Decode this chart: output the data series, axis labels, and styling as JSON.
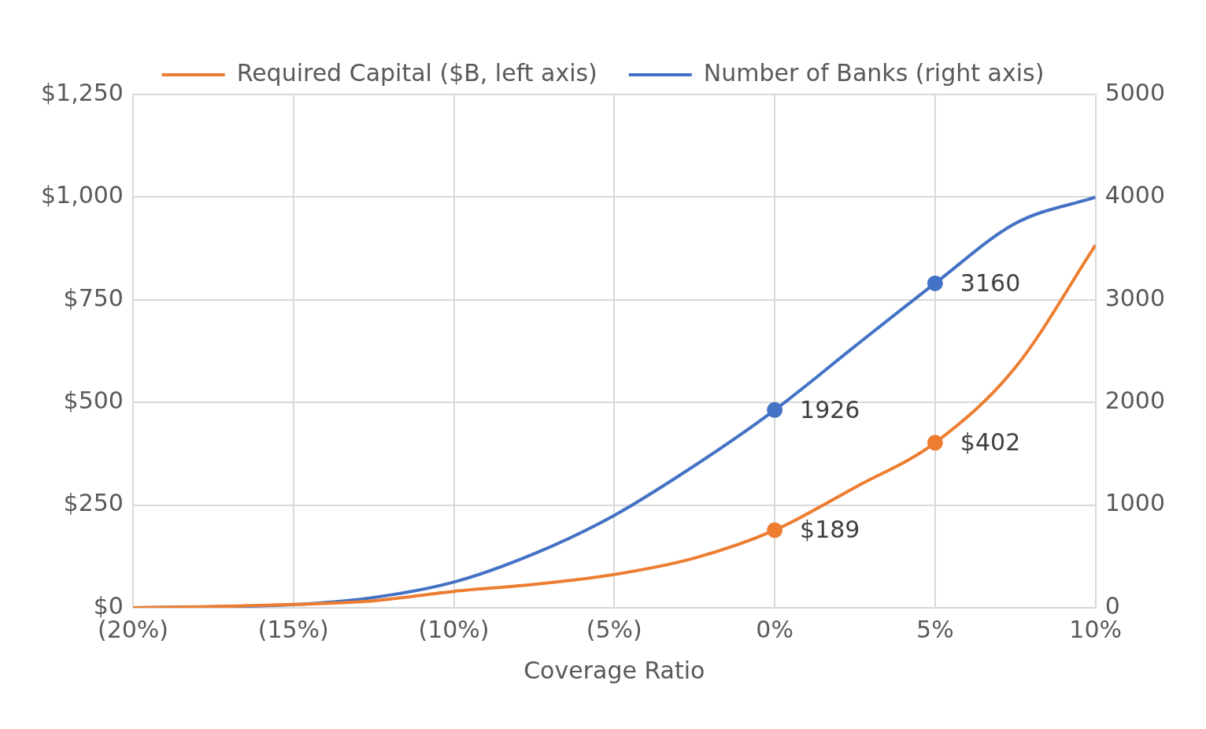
{
  "chart_data": {
    "type": "line",
    "xlabel": "Coverage Ratio",
    "x": [
      -20,
      -17.5,
      -15,
      -12.5,
      -10,
      -7.5,
      -5,
      -2.5,
      0,
      2.5,
      5,
      7.5,
      10
    ],
    "series": [
      {
        "name": "Required Capital ($B, left axis)",
        "color": "#ed7d31",
        "values": [
          0,
          3,
          8,
          17,
          40,
          57,
          81,
          121,
          189,
          293,
          402,
          585,
          883
        ],
        "value_labels": [
          null,
          null,
          null,
          null,
          null,
          null,
          null,
          null,
          "$189",
          null,
          "$402",
          null,
          null
        ]
      },
      {
        "name": "Number of Banks (right axis)",
        "color": "#4472c4",
        "axis": "y2",
        "values": [
          0,
          10,
          30,
          100,
          250,
          526,
          900,
          1384,
          1926,
          2547,
          3160,
          3744,
          4000
        ],
        "value_labels": [
          null,
          null,
          null,
          null,
          null,
          null,
          null,
          null,
          "1926",
          null,
          "3160",
          null,
          null
        ]
      }
    ],
    "xlim": [
      -20,
      10
    ],
    "xticks": [
      {
        "value": -20,
        "label": "(20%)"
      },
      {
        "value": -15,
        "label": "(15%)"
      },
      {
        "value": -10,
        "label": "(10%)"
      },
      {
        "value": -5,
        "label": "(5%)"
      },
      {
        "value": 0,
        "label": "0%"
      },
      {
        "value": 5,
        "label": "5%"
      },
      {
        "value": 10,
        "label": "10%"
      }
    ],
    "ylim": [
      0,
      1250
    ],
    "yticks": [
      {
        "value": 0,
        "label": "$0"
      },
      {
        "value": 250,
        "label": "$250"
      },
      {
        "value": 500,
        "label": "$500"
      },
      {
        "value": 750,
        "label": "$750"
      },
      {
        "value": 1000,
        "label": "$1,000"
      },
      {
        "value": 1250,
        "label": "$1,250"
      }
    ],
    "y2lim": [
      0,
      5000
    ],
    "y2ticks": [
      0,
      1000,
      2000,
      3000,
      4000,
      5000
    ],
    "grid": true,
    "legend": "top"
  }
}
